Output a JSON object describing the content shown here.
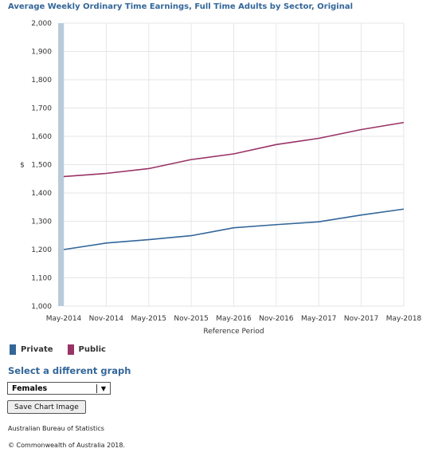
{
  "chart_data": {
    "type": "line",
    "title": "Average Weekly Ordinary Time Earnings, Full Time Adults by Sector, Original",
    "xlabel": "Reference Period",
    "ylabel": "$",
    "categories": [
      "May-2014",
      "Nov-2014",
      "May-2015",
      "Nov-2015",
      "May-2016",
      "Nov-2016",
      "May-2017",
      "Nov-2017",
      "May-2018"
    ],
    "series": [
      {
        "name": "Private",
        "color": "#336699",
        "values": [
          1200,
          1223,
          1235,
          1249,
          1277,
          1288,
          1298,
          1322,
          1343
        ]
      },
      {
        "name": "Public",
        "color": "#993366",
        "values": [
          1458,
          1469,
          1486,
          1518,
          1538,
          1571,
          1593,
          1624,
          1649
        ]
      }
    ],
    "ylim": [
      1000,
      2000
    ],
    "yticks": [
      "1,000",
      "1,100",
      "1,200",
      "1,300",
      "1,400",
      "1,500",
      "1,600",
      "1,700",
      "1,800",
      "1,900",
      "2,000"
    ],
    "grid": true,
    "legend_position": "bottom-left"
  },
  "controls": {
    "select_heading": "Select a different graph",
    "dropdown_value": "Females",
    "save_button": "Save Chart Image"
  },
  "footer": {
    "source": "Australian Bureau of Statistics",
    "copyright": "© Commonwealth of Australia 2018."
  }
}
